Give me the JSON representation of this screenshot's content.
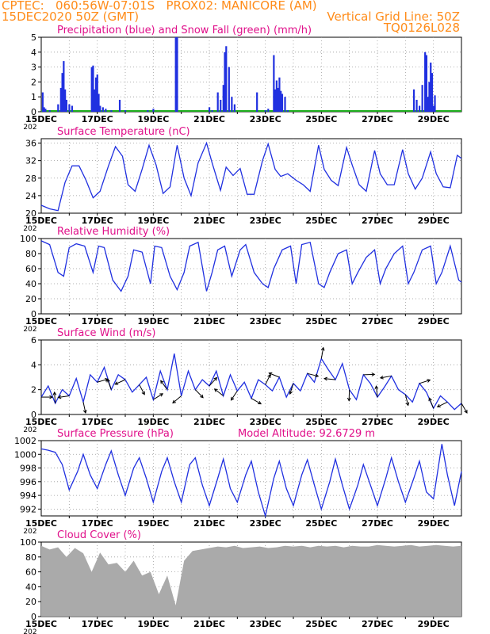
{
  "header": {
    "line1_left": "CPTEC:   060:56W-07:01S   PROX02: MANICORE (AM)",
    "line2_left": "15DEC2020 50Z (GMT)",
    "line2_right": "Vertical Grid Line: 50Z",
    "line3_right": "TQ0126L028",
    "color": "#ff8c1a"
  },
  "colors": {
    "title": "#e0108a",
    "line": "#2030e0",
    "cloud": "#aaaaaa",
    "snow": "#20b020",
    "grid": "#999999"
  },
  "x_axis": {
    "start_day": 15,
    "end_day": 30,
    "tick_labels": [
      "15DEC",
      "17DEC",
      "19DEC",
      "21DEC",
      "23DEC",
      "25DEC",
      "27DEC",
      "29DEC"
    ],
    "sub_label": "202"
  },
  "panels": {
    "precip": {
      "title": "Precipitation (blue) and Snow Fall (green) (mm/h)",
      "yticks": [
        "0",
        "1",
        "2",
        "3",
        "4",
        "5"
      ]
    },
    "temp": {
      "title": "Surface Temperature (nC)",
      "yticks": [
        "20",
        "24",
        "28",
        "32",
        "36"
      ]
    },
    "rh": {
      "title": "Relative Humidity (%)",
      "yticks": [
        "0",
        "20",
        "40",
        "60",
        "80",
        "100"
      ]
    },
    "wind": {
      "title": "Surface Wind (m/s)",
      "yticks": [
        "0",
        "2",
        "4",
        "6"
      ]
    },
    "pres": {
      "title": "Surface Pressure (hPa)",
      "extra": "Model Altitude: 92.6729 m",
      "yticks": [
        "992",
        "994",
        "996",
        "998",
        "1000",
        "1002"
      ]
    },
    "cloud": {
      "title": "Cloud Cover (%)",
      "yticks": [
        "0",
        "20",
        "40",
        "60",
        "80",
        "100"
      ]
    }
  },
  "chart_data": [
    {
      "type": "bar",
      "series": [
        {
          "name": "Precipitation",
          "color": "#2030e0"
        },
        {
          "name": "Snow Fall",
          "color": "#20b020"
        }
      ],
      "ylim": [
        0,
        5
      ],
      "x": [
        15.05,
        15.1,
        15.15,
        15.3,
        15.6,
        15.7,
        15.75,
        15.8,
        15.85,
        15.9,
        16.0,
        16.1,
        16.8,
        16.85,
        16.9,
        16.95,
        17.0,
        17.05,
        17.1,
        17.2,
        17.3,
        17.5,
        17.8,
        18.0,
        18.8,
        19.0,
        19.8,
        19.85,
        21.0,
        21.1,
        21.3,
        21.4,
        21.5,
        21.55,
        21.6,
        21.7,
        21.8,
        21.9,
        22.7,
        23.0,
        23.1,
        23.3,
        23.35,
        23.4,
        23.45,
        23.5,
        23.55,
        23.6,
        23.7,
        23.8,
        28.3,
        28.4,
        28.5,
        28.6,
        28.7,
        28.75,
        28.8,
        28.85,
        28.9,
        28.95,
        29.0,
        29.05
      ],
      "values": [
        1.3,
        0.3,
        0.2,
        0.1,
        0.5,
        1.6,
        2.6,
        3.4,
        1.5,
        0.8,
        0.5,
        0.4,
        3.0,
        3.1,
        1.5,
        2.3,
        2.5,
        1.2,
        0.4,
        0.3,
        0.2,
        0.1,
        0.8,
        0.1,
        0.1,
        0.2,
        5.0,
        5.0,
        0.3,
        0.1,
        1.3,
        0.8,
        1.8,
        4.0,
        4.4,
        3.0,
        1.0,
        0.5,
        1.3,
        0.1,
        0.2,
        3.8,
        1.5,
        2.1,
        1.6,
        2.3,
        1.4,
        1.2,
        1.0,
        0.1,
        1.5,
        0.8,
        0.4,
        1.8,
        4.0,
        3.8,
        1.0,
        2.0,
        3.3,
        2.6,
        0.4,
        1.1
      ]
    },
    {
      "type": "line",
      "ylim": [
        20,
        37
      ],
      "x": [
        15.0,
        15.3,
        15.6,
        15.85,
        16.1,
        16.35,
        16.6,
        16.85,
        17.1,
        17.4,
        17.65,
        17.9,
        18.1,
        18.35,
        18.6,
        18.85,
        19.1,
        19.35,
        19.6,
        19.85,
        20.1,
        20.35,
        20.6,
        20.9,
        21.1,
        21.4,
        21.6,
        21.85,
        22.1,
        22.35,
        22.6,
        22.9,
        23.1,
        23.35,
        23.55,
        23.8,
        24.1,
        24.35,
        24.6,
        24.9,
        25.1,
        25.35,
        25.6,
        25.9,
        26.1,
        26.35,
        26.6,
        26.9,
        27.1,
        27.35,
        27.6,
        27.9,
        28.1,
        28.35,
        28.6,
        28.9,
        29.1,
        29.35,
        29.6,
        29.85,
        30.0
      ],
      "values": [
        21.8,
        21.0,
        20.6,
        27.0,
        30.8,
        30.8,
        27.5,
        23.5,
        25.0,
        30.8,
        35.2,
        33.0,
        26.5,
        25.0,
        30.0,
        35.5,
        31.0,
        24.5,
        26.0,
        35.5,
        28.0,
        24.0,
        31.5,
        36.0,
        31.5,
        25.2,
        30.5,
        28.6,
        30.2,
        24.3,
        24.3,
        32.0,
        35.8,
        30.0,
        28.4,
        29.0,
        27.5,
        26.5,
        25.0,
        35.5,
        30.0,
        27.5,
        26.3,
        35.0,
        31.0,
        26.5,
        25.0,
        34.3,
        29.0,
        26.5,
        26.5,
        34.5,
        29.0,
        25.5,
        28.0,
        34.0,
        29.0,
        26.0,
        25.8,
        33.2,
        32.5
      ]
    },
    {
      "type": "line",
      "ylim": [
        0,
        100
      ],
      "x": [
        15.0,
        15.3,
        15.6,
        15.8,
        16.0,
        16.25,
        16.55,
        16.85,
        17.05,
        17.25,
        17.55,
        17.85,
        18.1,
        18.3,
        18.6,
        18.9,
        19.05,
        19.3,
        19.6,
        19.85,
        20.1,
        20.3,
        20.6,
        20.9,
        21.1,
        21.3,
        21.55,
        21.8,
        22.1,
        22.3,
        22.6,
        22.9,
        23.1,
        23.3,
        23.6,
        23.9,
        24.1,
        24.3,
        24.6,
        24.9,
        25.1,
        25.3,
        25.6,
        25.9,
        26.1,
        26.3,
        26.6,
        26.9,
        27.1,
        27.3,
        27.6,
        27.9,
        28.1,
        28.3,
        28.6,
        28.9,
        29.1,
        29.3,
        29.6,
        29.9,
        30.0
      ],
      "values": [
        97,
        92,
        55,
        50,
        88,
        93,
        90,
        55,
        90,
        88,
        45,
        30,
        50,
        85,
        82,
        40,
        90,
        88,
        50,
        32,
        55,
        90,
        95,
        30,
        55,
        85,
        90,
        50,
        85,
        92,
        55,
        40,
        35,
        60,
        85,
        90,
        40,
        92,
        95,
        40,
        35,
        55,
        80,
        85,
        40,
        55,
        75,
        85,
        40,
        60,
        80,
        90,
        40,
        55,
        85,
        90,
        40,
        55,
        90,
        45,
        42
      ]
    },
    {
      "type": "line",
      "ylim": [
        0,
        6
      ],
      "x": [
        15.0,
        15.25,
        15.5,
        15.75,
        16.0,
        16.25,
        16.5,
        16.75,
        17.0,
        17.25,
        17.5,
        17.75,
        18.0,
        18.25,
        18.5,
        18.75,
        19.0,
        19.25,
        19.5,
        19.75,
        20.0,
        20.25,
        20.5,
        20.75,
        21.0,
        21.25,
        21.5,
        21.75,
        22.0,
        22.25,
        22.5,
        22.75,
        23.0,
        23.25,
        23.5,
        23.75,
        24.0,
        24.25,
        24.5,
        24.75,
        25.0,
        25.25,
        25.5,
        25.75,
        26.0,
        26.25,
        26.5,
        26.75,
        27.0,
        27.25,
        27.5,
        27.75,
        28.0,
        28.25,
        28.5,
        28.75,
        29.0,
        29.25,
        29.5,
        29.75,
        30.0
      ],
      "values": [
        1.4,
        2.3,
        0.9,
        2.0,
        1.5,
        2.9,
        1.0,
        3.2,
        2.6,
        3.8,
        2.0,
        3.2,
        2.8,
        1.8,
        2.4,
        3.0,
        1.2,
        3.5,
        2.0,
        4.9,
        1.5,
        3.5,
        2.0,
        2.8,
        2.3,
        3.5,
        1.5,
        3.2,
        1.9,
        2.6,
        1.3,
        2.8,
        2.4,
        1.9,
        3.0,
        1.4,
        2.5,
        1.9,
        3.3,
        2.6,
        4.5,
        3.6,
        2.8,
        4.1,
        2.0,
        1.2,
        3.2,
        2.5,
        1.4,
        2.2,
        3.1,
        2.0,
        1.6,
        1.0,
        2.5,
        1.8,
        0.5,
        1.5,
        1.0,
        0.4,
        0.9
      ]
    },
    {
      "type": "line",
      "ylim": [
        991,
        1002
      ],
      "x": [
        15.0,
        15.25,
        15.5,
        15.75,
        16.0,
        16.3,
        16.5,
        16.75,
        17.0,
        17.3,
        17.5,
        17.75,
        18.0,
        18.3,
        18.5,
        18.75,
        19.0,
        19.3,
        19.5,
        19.75,
        20.0,
        20.3,
        20.5,
        20.75,
        21.0,
        21.3,
        21.5,
        21.75,
        22.0,
        22.3,
        22.5,
        22.75,
        23.0,
        23.3,
        23.5,
        23.75,
        24.0,
        24.3,
        24.5,
        24.75,
        25.0,
        25.3,
        25.5,
        25.75,
        26.0,
        26.3,
        26.5,
        26.75,
        27.0,
        27.3,
        27.5,
        27.75,
        28.0,
        28.3,
        28.5,
        28.75,
        29.0,
        29.3,
        29.5,
        29.75,
        30.0
      ],
      "values": [
        1000.8,
        1000.6,
        1000.3,
        998.5,
        994.8,
        997.5,
        1000.0,
        997.0,
        995.0,
        998.5,
        1000.5,
        997.0,
        994.0,
        998.0,
        999.5,
        996.5,
        993.0,
        997.5,
        999.5,
        996.0,
        993.0,
        998.5,
        999.5,
        995.5,
        992.5,
        996.5,
        999.3,
        995.0,
        993.0,
        997.0,
        999.0,
        994.5,
        991.0,
        996.5,
        999.0,
        995.0,
        992.5,
        997.0,
        999.2,
        995.5,
        992.0,
        996.0,
        999.3,
        995.5,
        992.0,
        995.5,
        998.5,
        995.5,
        992.5,
        996.5,
        999.5,
        996.0,
        993.0,
        996.5,
        999.0,
        994.5,
        993.5,
        1001.5,
        997.0,
        992.5,
        997.5
      ]
    },
    {
      "type": "area",
      "ylim": [
        0,
        100
      ],
      "x": [
        15.0,
        15.3,
        15.6,
        15.9,
        16.2,
        16.5,
        16.8,
        17.1,
        17.4,
        17.7,
        18.0,
        18.3,
        18.6,
        18.9,
        19.2,
        19.5,
        19.8,
        20.1,
        20.4,
        20.7,
        21.0,
        21.3,
        21.6,
        21.9,
        22.2,
        22.5,
        22.8,
        23.1,
        23.4,
        23.7,
        24.0,
        24.3,
        24.6,
        24.9,
        25.2,
        25.5,
        25.8,
        26.1,
        26.4,
        26.7,
        27.0,
        27.3,
        27.6,
        27.9,
        28.2,
        28.5,
        28.8,
        29.1,
        29.4,
        29.7,
        30.0
      ],
      "values": [
        95,
        90,
        93,
        80,
        92,
        85,
        60,
        86,
        70,
        72,
        60,
        75,
        55,
        60,
        30,
        55,
        15,
        75,
        88,
        90,
        92,
        94,
        93,
        95,
        92,
        93,
        94,
        92,
        93,
        95,
        94,
        95,
        93,
        95,
        94,
        95,
        93,
        95,
        94,
        94,
        96,
        95,
        94,
        95,
        96,
        94,
        95,
        96,
        95,
        94,
        95
      ]
    }
  ]
}
